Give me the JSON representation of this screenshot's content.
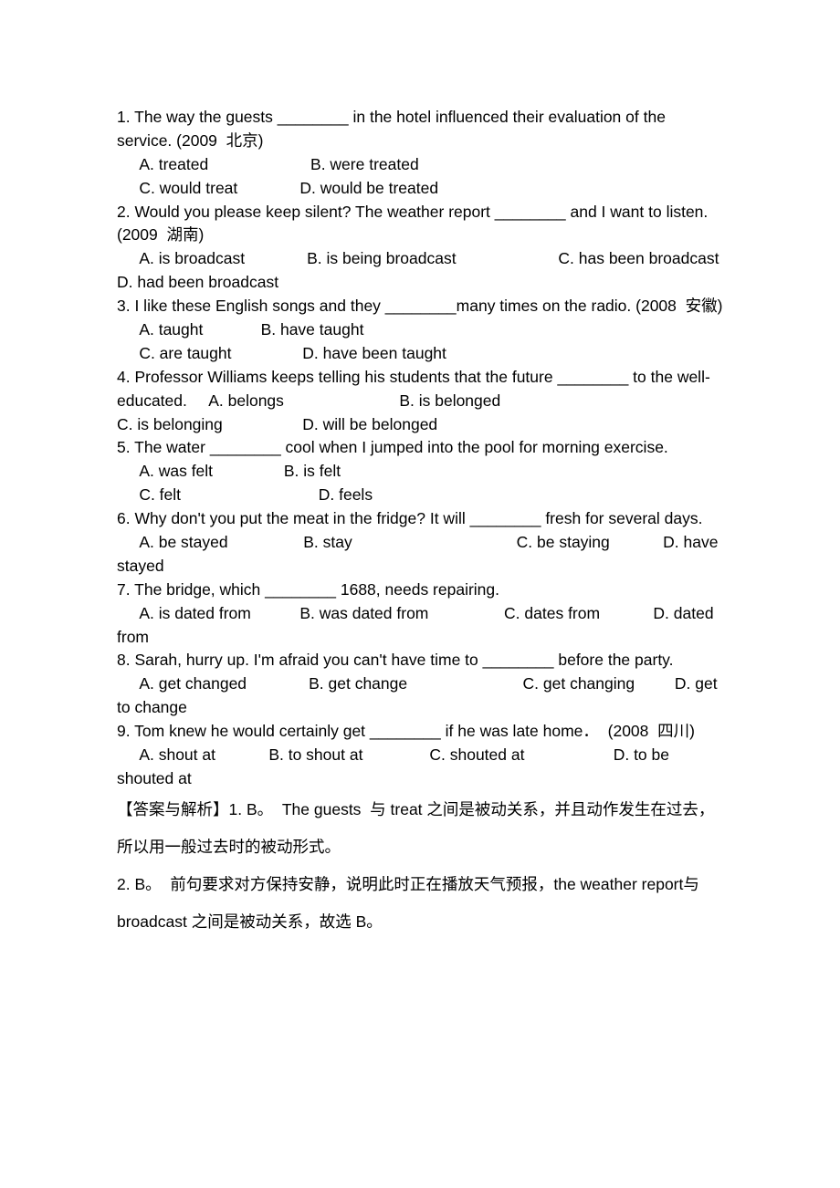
{
  "questions_block": "1. The way the guests ________ in the hotel influenced their evaluation of the service. (2009  北京)\n     A. treated                       B. were treated\n     C. would treat              D. would be treated\n2. Would you please keep silent? The weather report ________ and I want to listen. (2009  湖南)\n     A. is broadcast              B. is being broadcast                       C. has been broadcast      D. had been broadcast\n3. I like these English songs and they ________many times on the radio. (2008  安徽)\n     A. taught             B. have taught\n     C. are taught                D. have been taught\n4. Professor Williams keeps telling his students that the future ________ to the well-educated.     A. belongs                          B. is belonged\nC. is belonging                  D. will be belonged\n5. The water ________ cool when I jumped into the pool for morning exercise.\n     A. was felt                B. is felt\n     C. felt                               D. feels\n6. Why don't you put the meat in the fridge? It will ________ fresh for several days.\n     A. be stayed                 B. stay                                     C. be staying            D. have stayed\n7. The bridge, which ________ 1688, needs repairing.\n     A. is dated from           B. was dated from                 C. dates from            D. dated from\n8. Sarah, hurry up. I'm afraid you can't have time to ________ before the party.\n     A. get changed              B. get change                          C. get changing         D. get to change\n9. Tom knew he would certainly get ________ if he was late home．  (2008  四川)\n     A. shout at            B. to shout at               C. shouted at                    D. to be shouted at",
  "answers_block": "【答案与解析】1. B。  The guests  与 treat 之间是被动关系，并且动作发生在过去，所以用一般过去时的被动形式。\n2. B。  前句要求对方保持安静，说明此时正在播放天气预报，the weather report与 broadcast 之间是被动关系，故选 B。"
}
